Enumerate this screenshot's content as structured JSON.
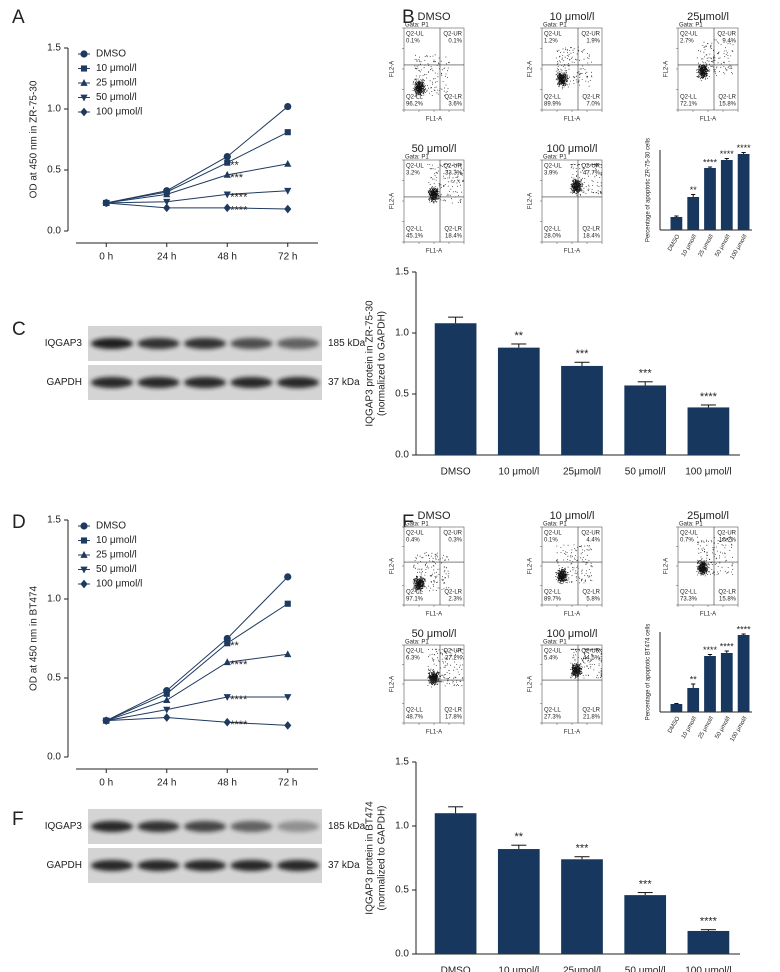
{
  "panel_labels": [
    "A",
    "B",
    "C",
    "D",
    "E",
    "F"
  ],
  "chart_data": [
    {
      "type": "line",
      "ylabel": "OD at 450 nm in ZR-75-30",
      "categories": [
        "0 h",
        "24 h",
        "48 h",
        "72 h"
      ],
      "ylim": [
        0,
        1.5
      ],
      "yticks": [
        {
          "value": 0,
          "label": "0.0"
        },
        0.5,
        {
          "value": 1,
          "label": "1.0"
        },
        1.5
      ],
      "series": [
        {
          "name": "DMSO",
          "color": "#1f3a60",
          "marker": "circle",
          "values": [
            0.23,
            0.33,
            0.61,
            1.02
          ],
          "annotations": [
            null,
            null,
            null,
            null
          ]
        },
        {
          "name": "10 μmol/l",
          "color": "#1f3a60",
          "marker": "square",
          "values": [
            0.23,
            0.32,
            0.56,
            0.81
          ],
          "annotations": [
            null,
            null,
            "**",
            null
          ]
        },
        {
          "name": "25 μmol/l",
          "color": "#1f3a60",
          "marker": "triangle-up",
          "values": [
            0.23,
            0.3,
            0.46,
            0.55
          ],
          "annotations": [
            null,
            null,
            "***",
            null
          ]
        },
        {
          "name": "50 μmol/l",
          "color": "#1f3a60",
          "marker": "triangle-down",
          "values": [
            0.23,
            0.24,
            0.3,
            0.33
          ],
          "annotations": [
            null,
            null,
            "****",
            null
          ]
        },
        {
          "name": "100 μmol/l",
          "color": "#1f3a60",
          "marker": "diamond",
          "values": [
            0.23,
            0.19,
            0.19,
            0.18
          ],
          "annotations": [
            null,
            null,
            "****",
            null
          ]
        }
      ]
    },
    {
      "type": "bar",
      "ylabel": [
        "Percentage of apoptotic ZR-75-30 cells"
      ],
      "categories": [
        "DMSO",
        "10 μmol/l",
        "25 μmol/l",
        "50 μmol/l",
        "100 μmol/l"
      ],
      "ylim": [
        0,
        80
      ],
      "color": "#17375e",
      "values": [
        13,
        33,
        62,
        70,
        76
      ],
      "errors": [
        1,
        2.5,
        1,
        1.5,
        1.5
      ],
      "annotations": [
        null,
        "**",
        "****",
        "****",
        "****"
      ]
    },
    {
      "type": "bar",
      "ylabel": [
        "IQGAP3 protein in ZR-75-30",
        "(normalized to GAPDH)"
      ],
      "categories": [
        "DMSO",
        "10 μmol/l",
        "25μmol/l",
        "50 μmol/l",
        "100 μmol/l"
      ],
      "ylim": [
        0,
        1.5
      ],
      "yticks": [
        {
          "value": 0,
          "label": "0.0"
        },
        0.5,
        {
          "value": 1,
          "label": "1.0"
        },
        1.5
      ],
      "color": "#17375e",
      "values": [
        1.08,
        0.88,
        0.73,
        0.57,
        0.39
      ],
      "errors": [
        0.05,
        0.03,
        0.03,
        0.03,
        0.02
      ],
      "annotations": [
        null,
        "**",
        "***",
        "***",
        "****"
      ]
    },
    {
      "type": "line",
      "ylabel": "OD at 450 nm in BT474",
      "categories": [
        "0 h",
        "24 h",
        "48 h",
        "72 h"
      ],
      "ylim": [
        0,
        1.5
      ],
      "yticks": [
        {
          "value": 0,
          "label": "0.0"
        },
        0.5,
        {
          "value": 1,
          "label": "1.0"
        },
        1.5
      ],
      "series": [
        {
          "name": "DMSO",
          "color": "#1f3a60",
          "marker": "circle",
          "values": [
            0.23,
            0.42,
            0.75,
            1.14
          ],
          "annotations": [
            null,
            null,
            null,
            null
          ]
        },
        {
          "name": "10 μmol/l",
          "color": "#1f3a60",
          "marker": "square",
          "values": [
            0.23,
            0.4,
            0.72,
            0.97
          ],
          "annotations": [
            null,
            null,
            "**",
            null
          ]
        },
        {
          "name": "25 μmol/l",
          "color": "#1f3a60",
          "marker": "triangle-up",
          "values": [
            0.23,
            0.36,
            0.6,
            0.65
          ],
          "annotations": [
            null,
            null,
            "****",
            null
          ]
        },
        {
          "name": "50 μmol/l",
          "color": "#1f3a60",
          "marker": "triangle-down",
          "values": [
            0.23,
            0.3,
            0.38,
            0.38
          ],
          "annotations": [
            null,
            null,
            "****",
            null
          ]
        },
        {
          "name": "100 μmol/l",
          "color": "#1f3a60",
          "marker": "diamond",
          "values": [
            0.23,
            0.25,
            0.22,
            0.2
          ],
          "annotations": [
            null,
            null,
            "****",
            null
          ]
        }
      ]
    },
    {
      "type": "bar",
      "ylabel": [
        "Percentage of apoptotic BT474 cells"
      ],
      "categories": [
        "DMSO",
        "10 μmol/l",
        "25 μmol/l",
        "50 μmol/l",
        "100 μmol/l"
      ],
      "ylim": [
        0,
        80
      ],
      "color": "#17375e",
      "values": [
        8,
        24,
        56,
        59,
        77
      ],
      "errors": [
        0.5,
        4,
        1.5,
        2,
        1
      ],
      "annotations": [
        null,
        "**",
        "****",
        "****",
        "****"
      ]
    },
    {
      "type": "bar",
      "ylabel": [
        "IQGAP3 protein in BT474",
        "(normalized to GAPDH)"
      ],
      "categories": [
        "DMSO",
        "10 μmol/l",
        "25μmol/l",
        "50 μmol/l",
        "100 μmol/l"
      ],
      "ylim": [
        0,
        1.5
      ],
      "yticks": [
        {
          "value": 0,
          "label": "0.0"
        },
        0.5,
        {
          "value": 1,
          "label": "1.0"
        },
        1.5
      ],
      "color": "#17375e",
      "values": [
        1.1,
        0.82,
        0.74,
        0.46,
        0.18
      ],
      "errors": [
        0.05,
        0.03,
        0.02,
        0.02,
        0.01
      ],
      "annotations": [
        null,
        "**",
        "***",
        "***",
        "****"
      ]
    }
  ],
  "flow_cytometry": [
    {
      "panels": [
        {
          "title": "DMSO",
          "gate": "Gata: P1",
          "x_label": "FL1-A",
          "y_label": "FL2-A",
          "quadrants": [
            {
              "name": "Q2-UL",
              "value": "0.1%"
            },
            {
              "name": "Q2-UR",
              "value": "0.1%"
            },
            {
              "name": "Q2-LL",
              "value": "96.2%"
            },
            {
              "name": "Q2-LR",
              "value": "3.6%"
            }
          ]
        },
        {
          "title": "10 μmol/l",
          "gate": "Gata: P1",
          "x_label": "FL1-A",
          "y_label": "FL2-A",
          "quadrants": [
            {
              "name": "Q2-UL",
              "value": "1.2%"
            },
            {
              "name": "Q2-UR",
              "value": "1.9%"
            },
            {
              "name": "Q2-LL",
              "value": "89.9%"
            },
            {
              "name": "Q2-LR",
              "value": "7.0%"
            }
          ]
        },
        {
          "title": "25μmol/l",
          "gate": "Gata: P1",
          "x_label": "FL1-A",
          "y_label": "FL2-A",
          "quadrants": [
            {
              "name": "Q2-UL",
              "value": "2.7%"
            },
            {
              "name": "Q2-UR",
              "value": "9.4%"
            },
            {
              "name": "Q2-LL",
              "value": "72.1%"
            },
            {
              "name": "Q2-LR",
              "value": "15.8%"
            }
          ]
        },
        {
          "title": "50 μmol/l",
          "gate": "Gata: P1",
          "x_label": "FL1-A",
          "y_label": "FL2-A",
          "quadrants": [
            {
              "name": "Q2-UL",
              "value": "3.2%"
            },
            {
              "name": "Q2-UR",
              "value": "33.3%"
            },
            {
              "name": "Q2-LL",
              "value": "45.1%"
            },
            {
              "name": "Q2-LR",
              "value": "18.4%"
            }
          ]
        },
        {
          "title": "100 μmol/l",
          "gate": "Gata: P1",
          "x_label": "FL1-A",
          "y_label": "FL2-A",
          "quadrants": [
            {
              "name": "Q2-UL",
              "value": "3.9%"
            },
            {
              "name": "Q2-UR",
              "value": "47.7%"
            },
            {
              "name": "Q2-LL",
              "value": "28.0%"
            },
            {
              "name": "Q2-LR",
              "value": "18.4%"
            }
          ]
        }
      ]
    },
    {
      "panels": [
        {
          "title": "DMSO",
          "gate": "Gata: P1",
          "x_label": "FL1-A",
          "y_label": "FL2-A",
          "quadrants": [
            {
              "name": "Q2-UL",
              "value": "0.4%"
            },
            {
              "name": "Q2-UR",
              "value": "0.3%"
            },
            {
              "name": "Q2-LL",
              "value": "97.1%"
            },
            {
              "name": "Q2-LR",
              "value": "2.3%"
            }
          ]
        },
        {
          "title": "10 μmol/l",
          "gate": "Gata: P1",
          "x_label": "FL1-A",
          "y_label": "FL2-A",
          "quadrants": [
            {
              "name": "Q2-UL",
              "value": "0.1%"
            },
            {
              "name": "Q2-UR",
              "value": "4.4%"
            },
            {
              "name": "Q2-LL",
              "value": "89.7%"
            },
            {
              "name": "Q2-LR",
              "value": "5.8%"
            }
          ]
        },
        {
          "title": "25μmol/l",
          "gate": "Gata: P1",
          "x_label": "FL1-A",
          "y_label": "FL2-A",
          "quadrants": [
            {
              "name": "Q2-UL",
              "value": "0.7%"
            },
            {
              "name": "Q2-UR",
              "value": "10.2%"
            },
            {
              "name": "Q2-LL",
              "value": "73.3%"
            },
            {
              "name": "Q2-LR",
              "value": "15.8%"
            }
          ]
        },
        {
          "title": "50 μmol/l",
          "gate": "Gata: P1",
          "x_label": "FL1-A",
          "y_label": "FL2-A",
          "quadrants": [
            {
              "name": "Q2-UL",
              "value": "6.3%"
            },
            {
              "name": "Q2-UR",
              "value": "27.2%"
            },
            {
              "name": "Q2-LL",
              "value": "48.7%"
            },
            {
              "name": "Q2-LR",
              "value": "17.8%"
            }
          ]
        },
        {
          "title": "100 μmol/l",
          "gate": "Gata: P1",
          "x_label": "FL1-A",
          "y_label": "FL2-A",
          "quadrants": [
            {
              "name": "Q2-UL",
              "value": "5.4%"
            },
            {
              "name": "Q2-UR",
              "value": "44.5%"
            },
            {
              "name": "Q2-LL",
              "value": "27.3%"
            },
            {
              "name": "Q2-LR",
              "value": "21.8%"
            }
          ]
        }
      ]
    }
  ],
  "western_blots": [
    {
      "rows": [
        {
          "protein": "IQGAP3",
          "size": "185 kDa"
        },
        {
          "protein": "GAPDH",
          "size": "37 kDa"
        }
      ]
    },
    {
      "rows": [
        {
          "protein": "IQGAP3",
          "size": "185 kDa"
        },
        {
          "protein": "GAPDH",
          "size": "37 kDa"
        }
      ]
    }
  ]
}
